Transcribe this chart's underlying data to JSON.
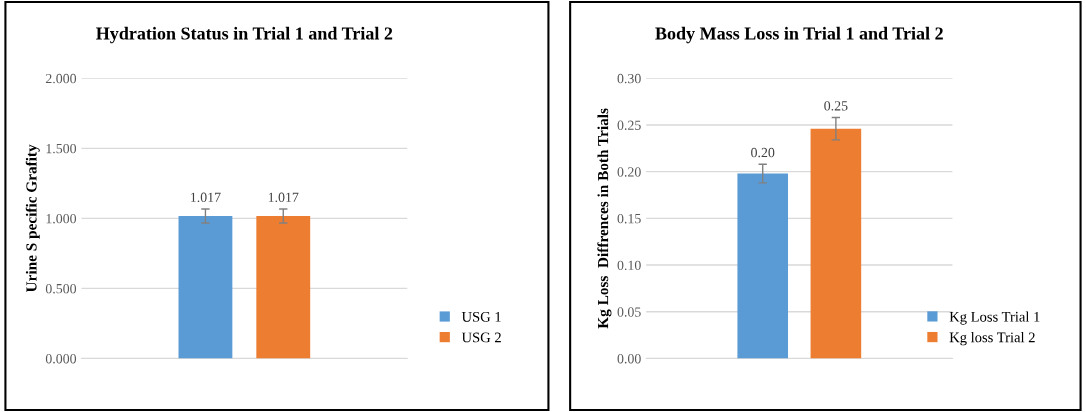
{
  "chart_data": [
    {
      "type": "bar",
      "title": "Hydration Status in Trial 1 and Trial 2",
      "ylabel": "Urine S pecific Grafity",
      "categories": [
        null
      ],
      "series": [
        {
          "name": "USG 1",
          "color": "#5b9bd5",
          "values": [
            1.017
          ],
          "errors": [
            0.05
          ],
          "value_labels": [
            "1.017"
          ]
        },
        {
          "name": "USG 2",
          "color": "#ed7d31",
          "values": [
            1.017
          ],
          "errors": [
            0.05
          ],
          "value_labels": [
            "1.017"
          ]
        }
      ],
      "ylim": [
        0,
        2
      ],
      "yticks": [
        {
          "value": 0,
          "label": "0.000"
        },
        {
          "value": 0.5,
          "label": "0.500"
        },
        {
          "value": 1,
          "label": "1.000"
        },
        {
          "value": 1.5,
          "label": "1.500"
        },
        {
          "value": 2,
          "label": "2.000"
        }
      ],
      "grid": "y",
      "legend": "bottom right"
    },
    {
      "type": "bar",
      "title": "Body Mass Loss in Trial 1 and Trial 2",
      "ylabel": "Kg Loss  Diffrences in Both Trials",
      "categories": [
        null
      ],
      "series": [
        {
          "name": "Kg Loss Trial 1",
          "color": "#5b9bd5",
          "values": [
            0.198
          ],
          "errors": [
            0.01
          ],
          "value_labels": [
            "0.20"
          ]
        },
        {
          "name": "Kg loss Trial 2",
          "color": "#ed7d31",
          "values": [
            0.246
          ],
          "errors": [
            0.012
          ],
          "value_labels": [
            "0.25"
          ]
        }
      ],
      "ylim": [
        0,
        0.3
      ],
      "yticks": [
        {
          "value": 0,
          "label": "0.00"
        },
        {
          "value": 0.05,
          "label": "0.05"
        },
        {
          "value": 0.1,
          "label": "0.10"
        },
        {
          "value": 0.15,
          "label": "0.15"
        },
        {
          "value": 0.2,
          "label": "0.20"
        },
        {
          "value": 0.25,
          "label": "0.25"
        },
        {
          "value": 0.3,
          "label": "0.30"
        }
      ],
      "grid": "y",
      "legend": "bottom right"
    }
  ]
}
